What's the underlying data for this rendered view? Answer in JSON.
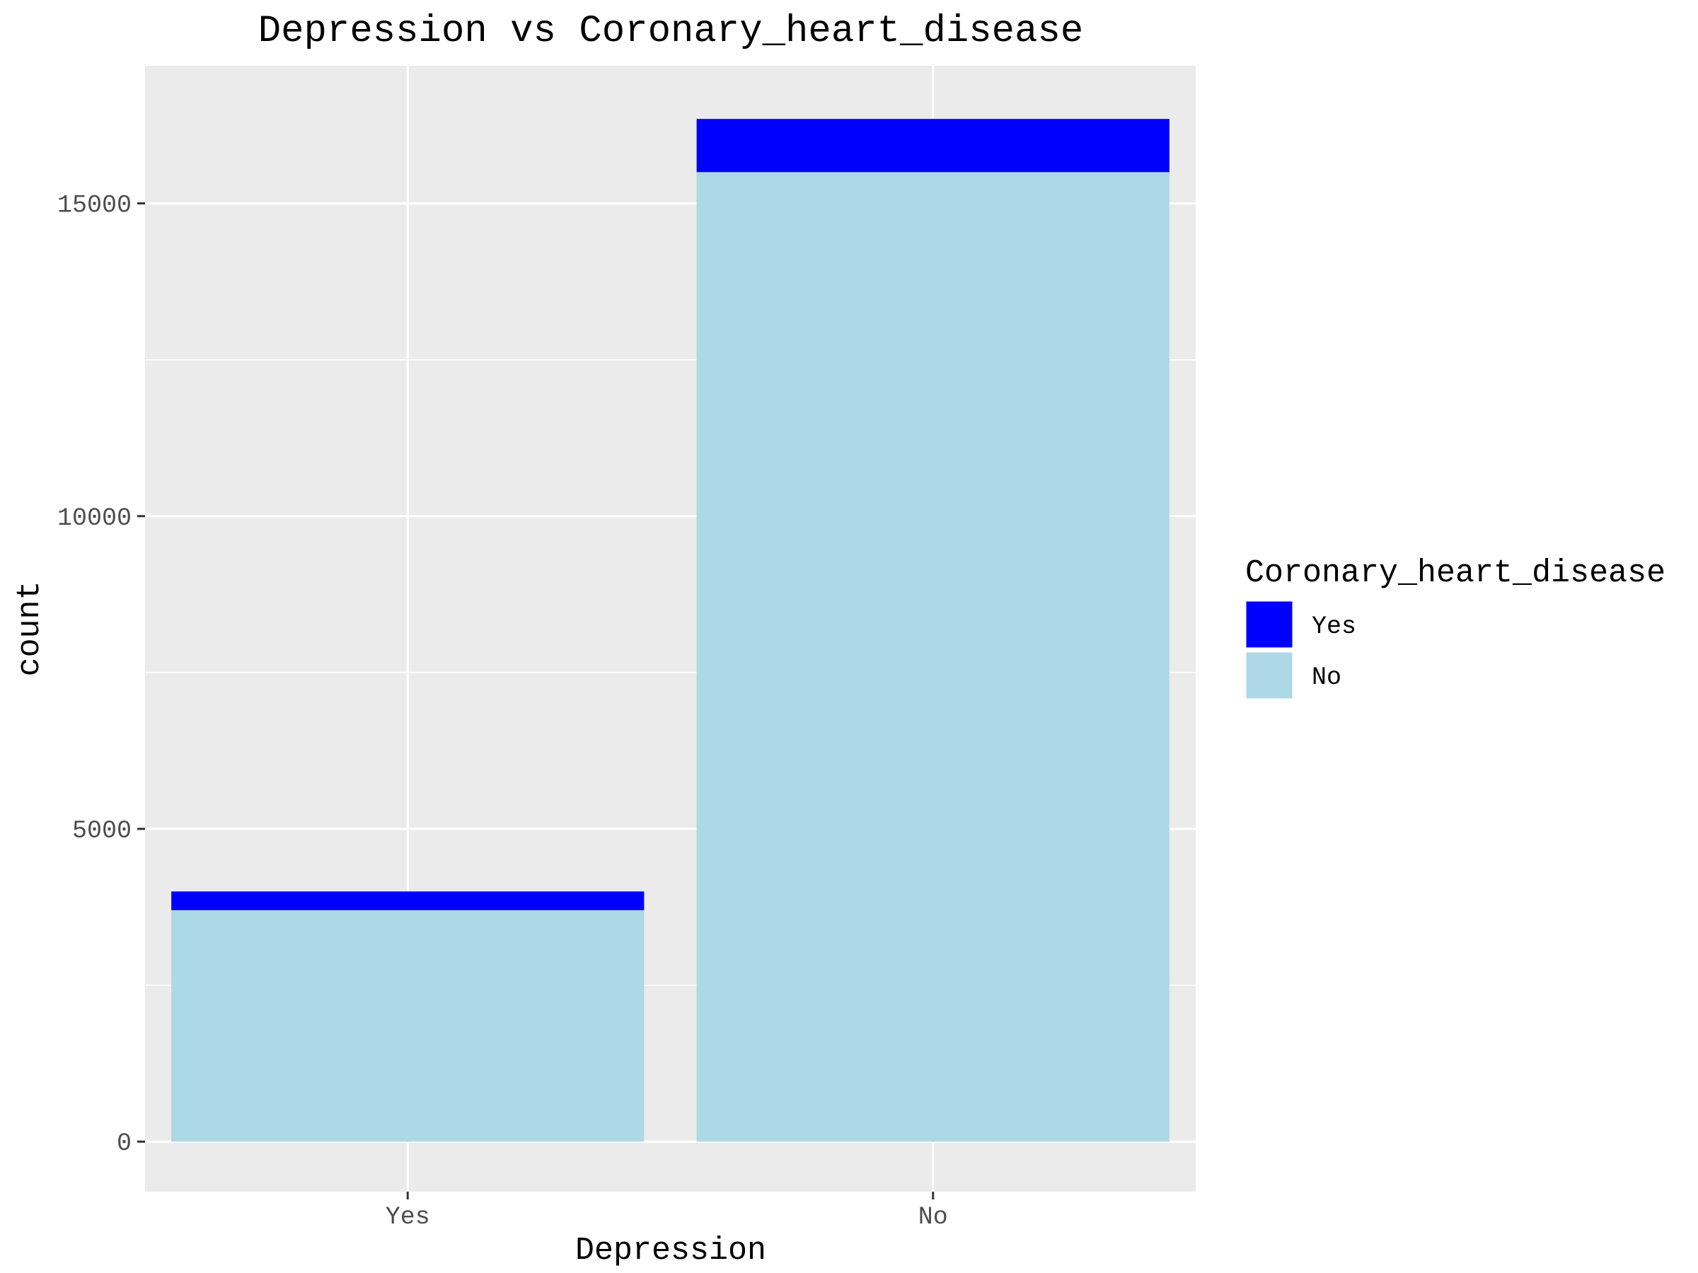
{
  "chart_data": {
    "type": "bar",
    "stacked": true,
    "title": "Depression vs Coronary_heart_disease",
    "xlabel": "Depression",
    "ylabel": "count",
    "categories": [
      "Yes",
      "No"
    ],
    "series": [
      {
        "name": "Yes",
        "color": "#0000ff",
        "values": [
          300,
          850
        ]
      },
      {
        "name": "No",
        "color": "#add8e6",
        "values": [
          3700,
          15500
        ]
      }
    ],
    "ylim": [
      -800,
      17200
    ],
    "yticks": [
      0,
      5000,
      10000,
      15000
    ],
    "ytick_labels": [
      "0",
      "5000",
      "10000",
      "15000"
    ],
    "grid": true,
    "panel_background": "#ebebeb",
    "legend": {
      "title": "Coronary_heart_disease",
      "position": "right",
      "entries": [
        "Yes",
        "No"
      ]
    }
  }
}
